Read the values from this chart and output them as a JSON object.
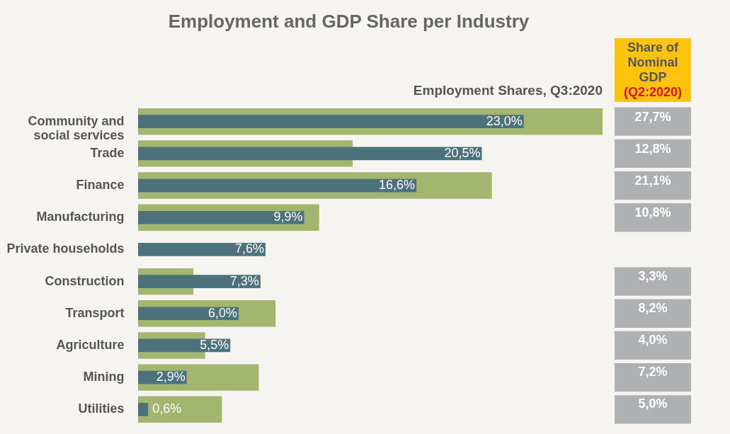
{
  "chart_data": {
    "type": "bar",
    "orientation": "horizontal",
    "title": "Employment and GDP Share per Industry",
    "subtitle": "Employment Shares, Q3:2020",
    "annotations": [
      "Share of Nominal GDP",
      "(Q2:2020)"
    ],
    "categories": [
      "Community and social services",
      "Trade",
      "Finance",
      "Manufacturing",
      "Private households",
      "Construction",
      "Transport",
      "Agriculture",
      "Mining",
      "Utilities"
    ],
    "series": [
      {
        "color": "#a3b56f",
        "values": [
          27.7,
          12.8,
          21.1,
          10.8,
          null,
          3.3,
          8.2,
          4.0,
          7.2,
          5.0
        ],
        "value_labels": [
          "27,7%",
          "12,8%",
          "21,1%",
          "10,8%",
          null,
          "3,3%",
          "8,2%",
          "4,0%",
          "7,2%",
          "5,0%"
        ]
      },
      {
        "color": "#4e727b",
        "values": [
          23.0,
          20.5,
          16.6,
          9.9,
          7.6,
          7.3,
          6.0,
          5.5,
          2.9,
          0.6
        ],
        "value_labels": [
          "23,0%",
          "20,5%",
          "16,6%",
          "9,9%",
          "7,6%",
          "7,3%",
          "6,0%",
          "5,5%",
          "2,9%",
          "0,6%"
        ]
      }
    ]
  }
}
